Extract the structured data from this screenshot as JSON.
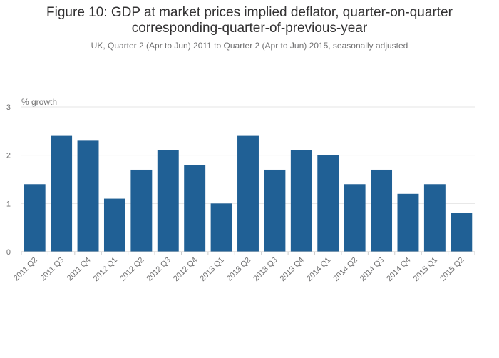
{
  "chart_data": {
    "type": "bar",
    "title_line1": "Figure 10: GDP at market prices implied deflator, quarter-on-quarter",
    "title_line2": "corresponding-quarter-of-previous-year",
    "subtitle": "UK, Quarter 2 (Apr to Jun) 2011 to Quarter 2 (Apr to Jun) 2015, seasonally adjusted",
    "ylabel": "% growth",
    "xlabel": "",
    "ylim": [
      0,
      3
    ],
    "yticks": [
      "0",
      "1",
      "2",
      "3"
    ],
    "grid": true,
    "categories": [
      "2011 Q2",
      "2011 Q3",
      "2011 Q4",
      "2012 Q1",
      "2012 Q2",
      "2012 Q3",
      "2012 Q4",
      "2013 Q1",
      "2013 Q2",
      "2013 Q3",
      "2013 Q4",
      "2014 Q1",
      "2014 Q2",
      "2014 Q3",
      "2014 Q4",
      "2015 Q1",
      "2015 Q2"
    ],
    "values": [
      1.4,
      2.4,
      2.3,
      1.1,
      1.7,
      2.1,
      1.8,
      1.0,
      2.4,
      1.7,
      2.1,
      2.0,
      1.4,
      1.7,
      1.2,
      1.4,
      0.8
    ],
    "bar_color": "#206095",
    "grid_color": "#e5e5e5",
    "axis_color": "#cccccc",
    "text_color": "#707071"
  }
}
